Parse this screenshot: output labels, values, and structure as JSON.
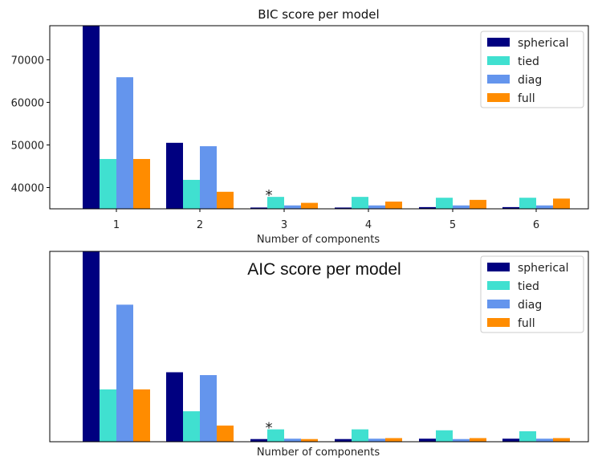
{
  "colors": {
    "spherical": "#000080",
    "tied": "#40e0d0",
    "diag": "#6495ed",
    "full": "#ff8c00"
  },
  "chart_data": [
    {
      "type": "bar",
      "title": "BIC score per model",
      "xlabel": "Number of components",
      "ylabel": "",
      "categories": [
        "1",
        "2",
        "3",
        "4",
        "5",
        "6"
      ],
      "ylim": [
        35000,
        78000
      ],
      "yticks": [
        "40000",
        "50000",
        "60000",
        "70000"
      ],
      "legend_position": "upper-right",
      "annotation": {
        "text": "*",
        "category": "3",
        "series": "tied"
      },
      "series": [
        {
          "name": "spherical",
          "color": "#000080",
          "values": [
            78000,
            50500,
            35300,
            35300,
            35400,
            35400
          ]
        },
        {
          "name": "tied",
          "color": "#40e0d0",
          "values": [
            46700,
            41800,
            37800,
            37800,
            37600,
            37600
          ]
        },
        {
          "name": "diag",
          "color": "#6495ed",
          "values": [
            65900,
            49700,
            35800,
            35800,
            35800,
            35800
          ]
        },
        {
          "name": "full",
          "color": "#ff8c00",
          "values": [
            46700,
            39000,
            36400,
            36700,
            37100,
            37400
          ]
        }
      ]
    },
    {
      "type": "bar",
      "title": "AIC score per model",
      "xlabel": "Number of components",
      "ylabel": "",
      "categories": [
        "1",
        "2",
        "3",
        "4",
        "5",
        "6"
      ],
      "ylim": [
        0,
        100
      ],
      "yticks": [],
      "legend_position": "upper-right",
      "annotation": {
        "text": "*",
        "category": "3",
        "series": "tied"
      },
      "series": [
        {
          "name": "spherical",
          "color": "#000080",
          "values": [
            100,
            36.5,
            1.4,
            1.4,
            1.6,
            1.6
          ]
        },
        {
          "name": "tied",
          "color": "#40e0d0",
          "values": [
            27.5,
            16,
            6.5,
            6.5,
            6,
            5.5
          ]
        },
        {
          "name": "diag",
          "color": "#6495ed",
          "values": [
            72,
            35,
            1.6,
            1.6,
            1.4,
            1.6
          ]
        },
        {
          "name": "full",
          "color": "#ff8c00",
          "values": [
            27.5,
            8.5,
            1.4,
            1.9,
            1.9,
            1.9
          ]
        }
      ]
    }
  ]
}
